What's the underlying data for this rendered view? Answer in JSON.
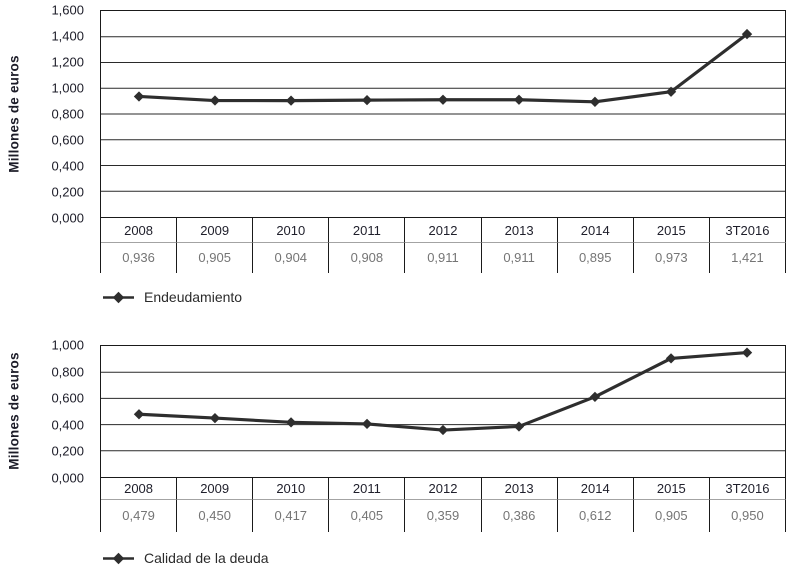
{
  "y_axis_title": "Millones de euros",
  "chart_data": [
    {
      "type": "line",
      "title": "",
      "ylabel": "Millones de euros",
      "xlabel": "",
      "legend": "Endeudamiento",
      "legend_position": "bottom-left",
      "grid": true,
      "categories": [
        "2008",
        "2009",
        "2010",
        "2011",
        "2012",
        "2013",
        "2014",
        "2015",
        "3T2016"
      ],
      "values": [
        0.936,
        0.905,
        0.904,
        0.908,
        0.911,
        0.911,
        0.895,
        0.973,
        1.421
      ],
      "value_labels": [
        "0,936",
        "0,905",
        "0,904",
        "0,908",
        "0,911",
        "0,911",
        "0,895",
        "0,973",
        "1,421"
      ],
      "ylim": [
        0,
        1.6
      ],
      "ytick_step": 0.2,
      "ytick_labels": [
        "1,600",
        "1,400",
        "1,200",
        "1,000",
        "0,800",
        "0,600",
        "0,400",
        "0,200",
        "0,000"
      ]
    },
    {
      "type": "line",
      "title": "",
      "ylabel": "Millones de euros",
      "xlabel": "",
      "legend": "Calidad de la deuda",
      "legend_position": "bottom-left",
      "grid": true,
      "categories": [
        "2008",
        "2009",
        "2010",
        "2011",
        "2012",
        "2013",
        "2014",
        "2015",
        "3T2016"
      ],
      "values": [
        0.479,
        0.45,
        0.417,
        0.405,
        0.359,
        0.386,
        0.612,
        0.905,
        0.95
      ],
      "value_labels": [
        "0,479",
        "0,450",
        "0,417",
        "0,405",
        "0,359",
        "0,386",
        "0,612",
        "0,905",
        "0,950"
      ],
      "ylim": [
        0,
        1.0
      ],
      "ytick_step": 0.2,
      "ytick_labels": [
        "1,000",
        "0,800",
        "0,600",
        "0,400",
        "0,200",
        "0,000"
      ]
    }
  ],
  "colors": {
    "series_line": "#2e2e2e",
    "marker": "#2e2e2e",
    "plot_border": "#1a1a1a",
    "gridline": "#2a2a2a",
    "year_text": "#1f1f2b",
    "value_text": "#757575",
    "tick_text": "#1c1c28",
    "header_separator": "#a3a3a3",
    "background": "#ffffff"
  }
}
